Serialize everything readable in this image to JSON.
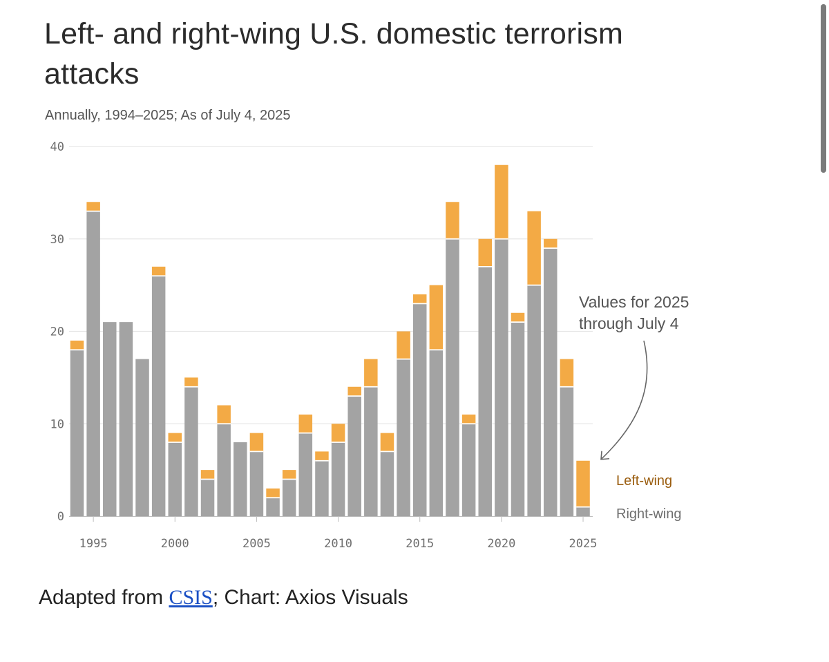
{
  "title": "Left- and right-wing U.S. domestic terrorism attacks",
  "subtitle": "Annually, 1994–2025; As of July 4, 2025",
  "source": {
    "prefix": "Adapted from ",
    "link_text": "CSIS",
    "suffix": "; Chart: Axios Visuals"
  },
  "colors": {
    "right_wing": "#a3a3a3",
    "left_wing": "#f3aa45",
    "left_label": "#9b5e10",
    "right_label": "#6e6e6e",
    "grid": "#e6e6e6"
  },
  "chart_data": {
    "type": "bar",
    "stacked": true,
    "title": "Left- and right-wing U.S. domestic terrorism attacks",
    "subtitle": "Annually, 1994–2025; As of July 4, 2025",
    "xlabel": "",
    "ylabel": "",
    "ylim": [
      0,
      40
    ],
    "yticks": [
      0,
      10,
      20,
      30,
      40
    ],
    "xticks": [
      1995,
      2000,
      2005,
      2010,
      2015,
      2020,
      2025
    ],
    "grid": true,
    "legend": "direct labels at right",
    "categories": [
      1994,
      1995,
      1996,
      1997,
      1998,
      1999,
      2000,
      2001,
      2002,
      2003,
      2004,
      2005,
      2006,
      2007,
      2008,
      2009,
      2010,
      2011,
      2012,
      2013,
      2014,
      2015,
      2016,
      2017,
      2018,
      2019,
      2020,
      2021,
      2022,
      2023,
      2024,
      2025
    ],
    "series": [
      {
        "name": "Right-wing",
        "values": [
          18,
          33,
          21,
          21,
          17,
          26,
          8,
          14,
          4,
          10,
          8,
          7,
          2,
          4,
          9,
          6,
          8,
          13,
          14,
          7,
          17,
          23,
          18,
          30,
          10,
          27,
          30,
          21,
          25,
          29,
          14,
          1
        ]
      },
      {
        "name": "Left-wing",
        "values": [
          1,
          1,
          0,
          0,
          0,
          1,
          1,
          1,
          1,
          2,
          0,
          2,
          1,
          1,
          2,
          1,
          2,
          1,
          3,
          2,
          3,
          1,
          7,
          4,
          1,
          3,
          8,
          1,
          8,
          1,
          3,
          5
        ]
      }
    ],
    "annotation": {
      "text_line1": "Values for 2025",
      "text_line2": "through July 4",
      "target_year": 2025
    }
  }
}
